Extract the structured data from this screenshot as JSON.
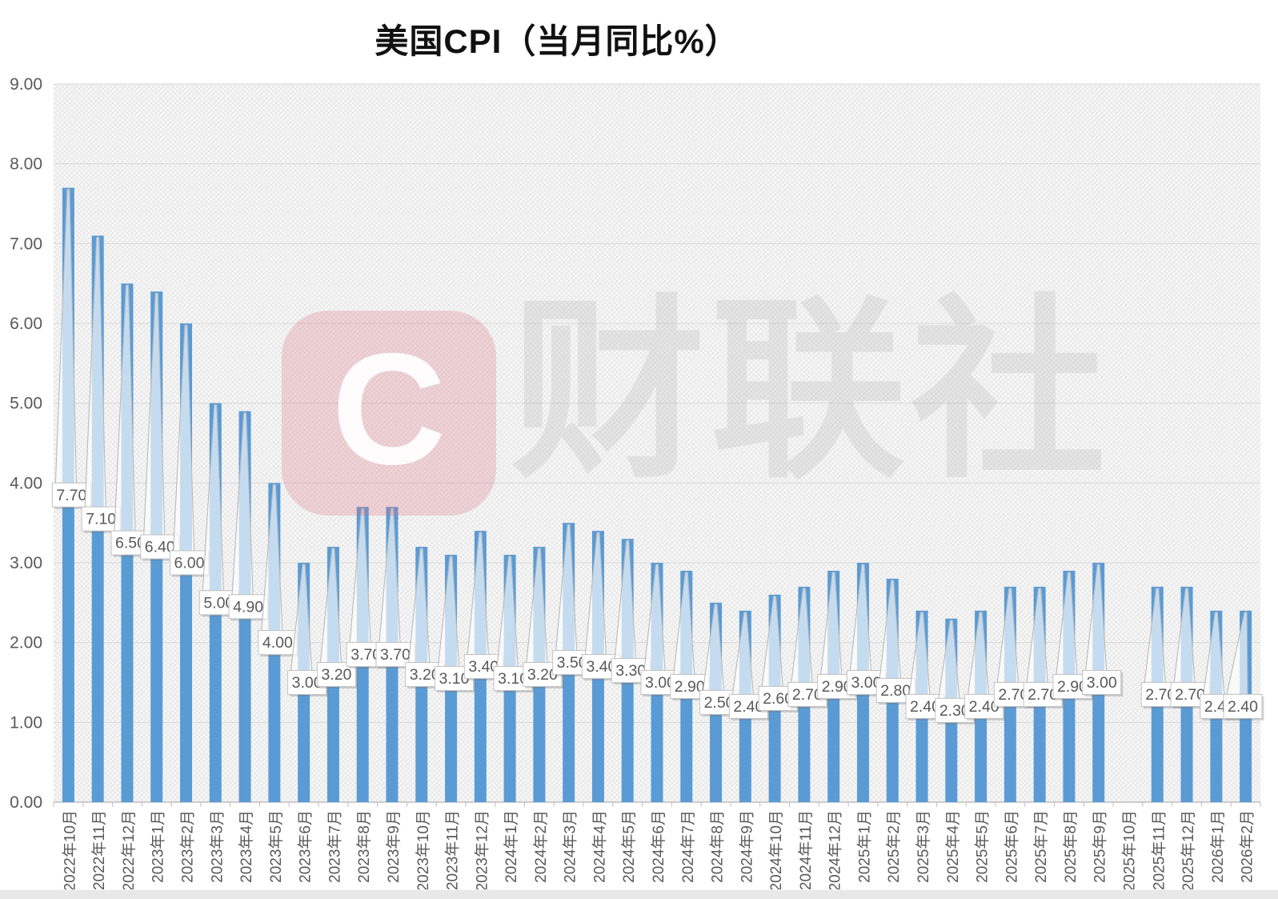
{
  "watermark": {
    "logo_letter": "C",
    "text": "财联社"
  },
  "chart_data": {
    "type": "bar",
    "title": "美国CPI（当月同比%）",
    "xlabel": "",
    "ylabel": "",
    "ylim": [
      0,
      9
    ],
    "y_tick_step": 1,
    "y_tick_format": "two-decimals",
    "grid": true,
    "legend": "none",
    "data_labels": "callout-boxes-with-leader-lines",
    "missing_categories": [
      "2025年10月"
    ],
    "categories": [
      "2022年10月",
      "2022年11月",
      "2022年12月",
      "2023年1月",
      "2023年2月",
      "2023年3月",
      "2023年4月",
      "2023年5月",
      "2023年6月",
      "2023年7月",
      "2023年8月",
      "2023年9月",
      "2023年10月",
      "2023年11月",
      "2023年12月",
      "2024年1月",
      "2024年2月",
      "2024年3月",
      "2024年4月",
      "2024年5月",
      "2024年6月",
      "2024年7月",
      "2024年8月",
      "2024年9月",
      "2024年10月",
      "2024年11月",
      "2024年12月",
      "2025年1月",
      "2025年2月",
      "2025年3月",
      "2025年4月",
      "2025年5月",
      "2025年6月",
      "2025年7月",
      "2025年8月",
      "2025年9月",
      "2025年10月",
      "2025年11月",
      "2025年12月",
      "2026年1月",
      "2026年2月"
    ],
    "values": [
      7.7,
      7.1,
      6.5,
      6.4,
      6.0,
      5.0,
      4.9,
      4.0,
      3.0,
      3.2,
      3.7,
      3.7,
      3.2,
      3.1,
      3.4,
      3.1,
      3.2,
      3.5,
      3.4,
      3.3,
      3.0,
      2.9,
      2.5,
      2.4,
      2.6,
      2.7,
      2.9,
      3.0,
      2.8,
      2.4,
      2.3,
      2.4,
      2.7,
      2.7,
      2.9,
      3.0,
      null,
      2.7,
      2.7,
      2.4,
      2.4
    ]
  },
  "colors": {
    "bar": "#5B9BD5",
    "axis_text": "#595959",
    "gridline": "#d9d9d9",
    "axis_line": "#bfbfbf",
    "plot_bg": "#f8f8f8",
    "hatch_line": "#dedede",
    "label_box_fill": "#ffffff",
    "label_box_border": "#c3c3c3",
    "label_text": "#595959",
    "leader_line": "#b9b9b9"
  }
}
